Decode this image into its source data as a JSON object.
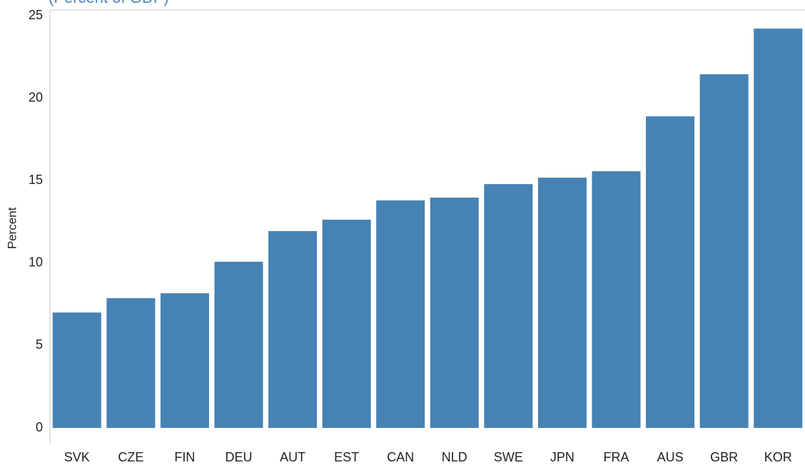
{
  "chart_data": {
    "type": "bar",
    "subtitle": "(Percent of GDP)",
    "y_label": "Percent",
    "categories": [
      "SVK",
      "CZE",
      "FIN",
      "DEU",
      "AUT",
      "EST",
      "CAN",
      "NLD",
      "SWE",
      "JPN",
      "FRA",
      "AUS",
      "GBR",
      "KOR"
    ],
    "values": [
      7.0,
      7.87,
      8.17,
      10.08,
      11.94,
      12.63,
      13.8,
      13.97,
      14.79,
      15.18,
      15.57,
      18.9,
      21.45,
      24.22
    ],
    "color": "#4682b4",
    "ylim": [
      -0.95,
      25.35
    ],
    "yticks": [
      0,
      5,
      10,
      15,
      20,
      25
    ],
    "grid": false
  }
}
